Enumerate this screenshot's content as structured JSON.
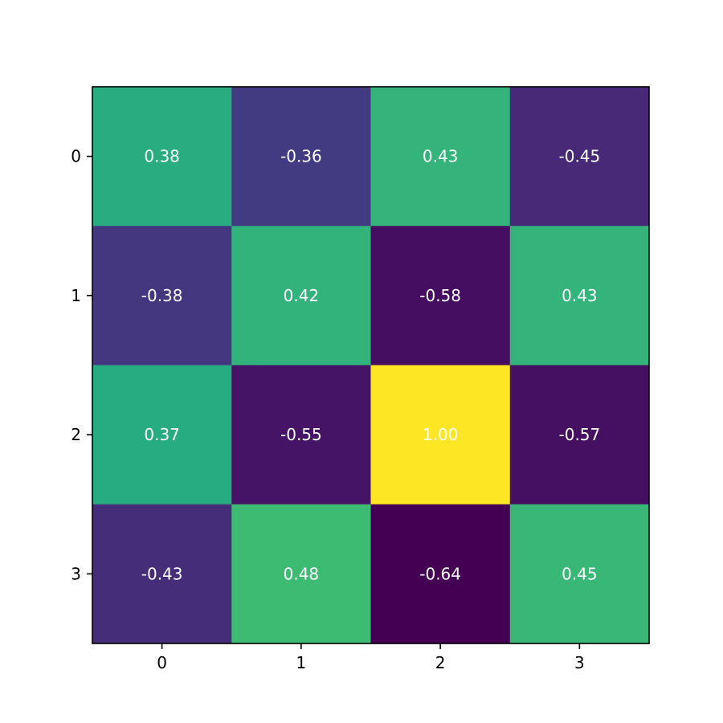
{
  "chart_data": {
    "type": "heatmap",
    "title": "",
    "xlabel": "",
    "ylabel": "",
    "x_categories": [
      "0",
      "1",
      "2",
      "3"
    ],
    "y_categories": [
      "0",
      "1",
      "2",
      "3"
    ],
    "values": [
      [
        0.38,
        -0.36,
        0.43,
        -0.45
      ],
      [
        -0.38,
        0.42,
        -0.58,
        0.43
      ],
      [
        0.37,
        -0.55,
        1.0,
        -0.57
      ],
      [
        -0.43,
        0.48,
        -0.64,
        0.45
      ]
    ],
    "value_labels": [
      [
        "0.38",
        "-0.36",
        "0.43",
        "-0.45"
      ],
      [
        "-0.38",
        "0.42",
        "-0.58",
        "0.43"
      ],
      [
        "0.37",
        "-0.55",
        "1.00",
        "-0.57"
      ],
      [
        "-0.43",
        "0.48",
        "-0.64",
        "0.45"
      ]
    ],
    "value_range": [
      -0.64,
      1.0
    ],
    "colormap": "viridis",
    "label_color": "#ffffff",
    "colorbar": false,
    "grid": false
  }
}
